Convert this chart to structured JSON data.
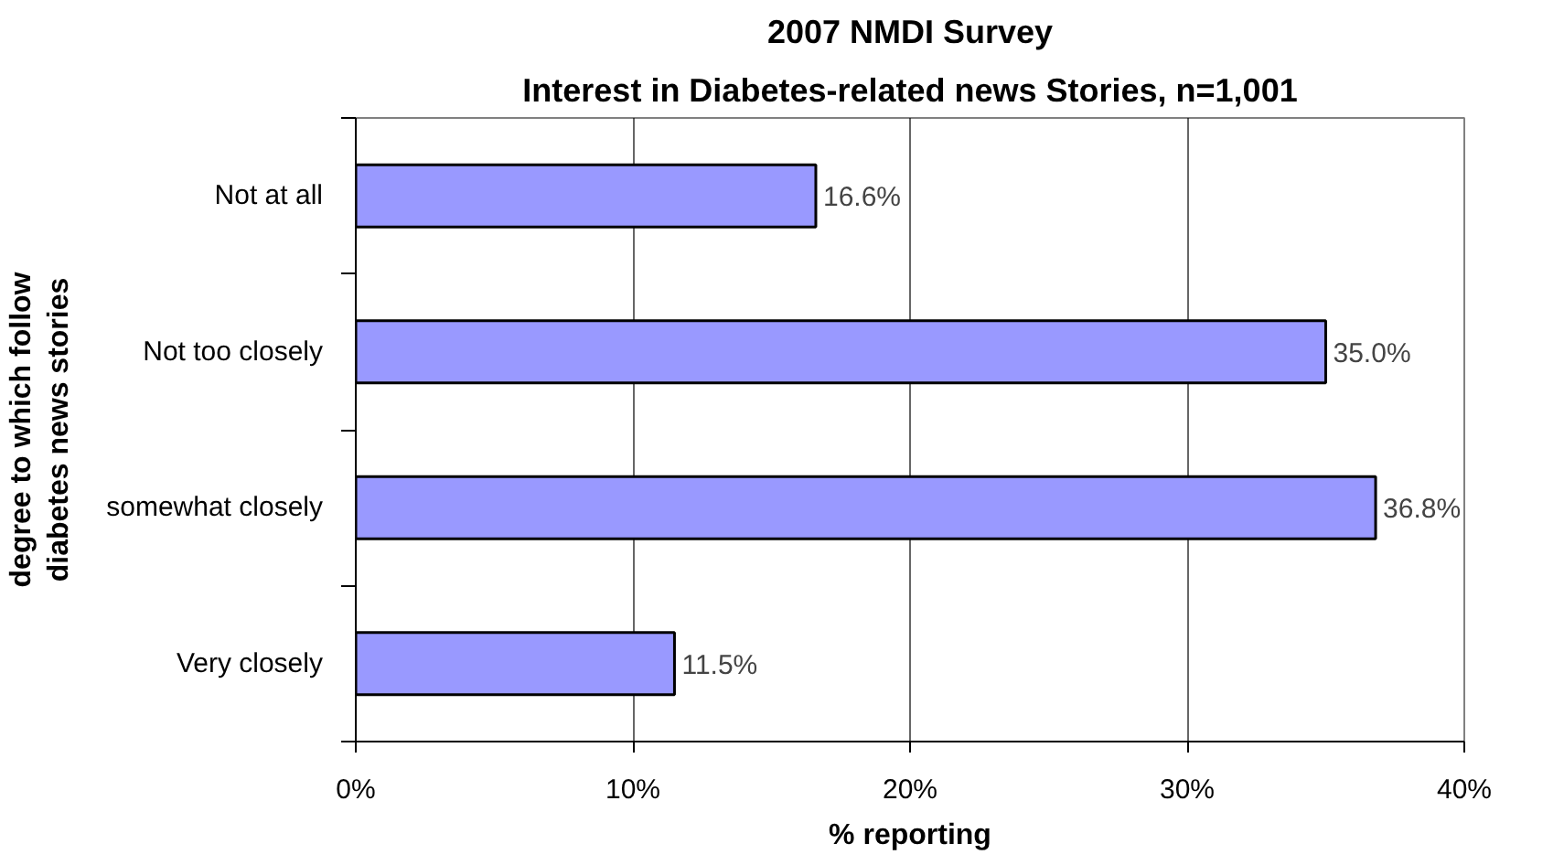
{
  "chart_data": {
    "type": "bar",
    "orientation": "horizontal",
    "title": "2007 NMDI Survey",
    "subtitle": "Interest in Diabetes-related news Stories, n=1,001",
    "xlabel": "% reporting",
    "ylabel": "degree to which follow\ndiabetes news stories",
    "categories": [
      "Not at all",
      "Not too closely",
      "somewhat closely",
      "Very closely"
    ],
    "values": [
      16.6,
      35.0,
      36.8,
      11.5
    ],
    "value_labels": [
      "16.6%",
      "35.0%",
      "36.8%",
      "11.5%"
    ],
    "color": "#9999ff",
    "xlim": [
      0,
      40
    ],
    "xticks": [
      {
        "value": 0,
        "label": "0%"
      },
      {
        "value": 10,
        "label": "10%"
      },
      {
        "value": 20,
        "label": "20%"
      },
      {
        "value": 30,
        "label": "30%"
      },
      {
        "value": 40,
        "label": "40%"
      }
    ],
    "grid": "x"
  }
}
